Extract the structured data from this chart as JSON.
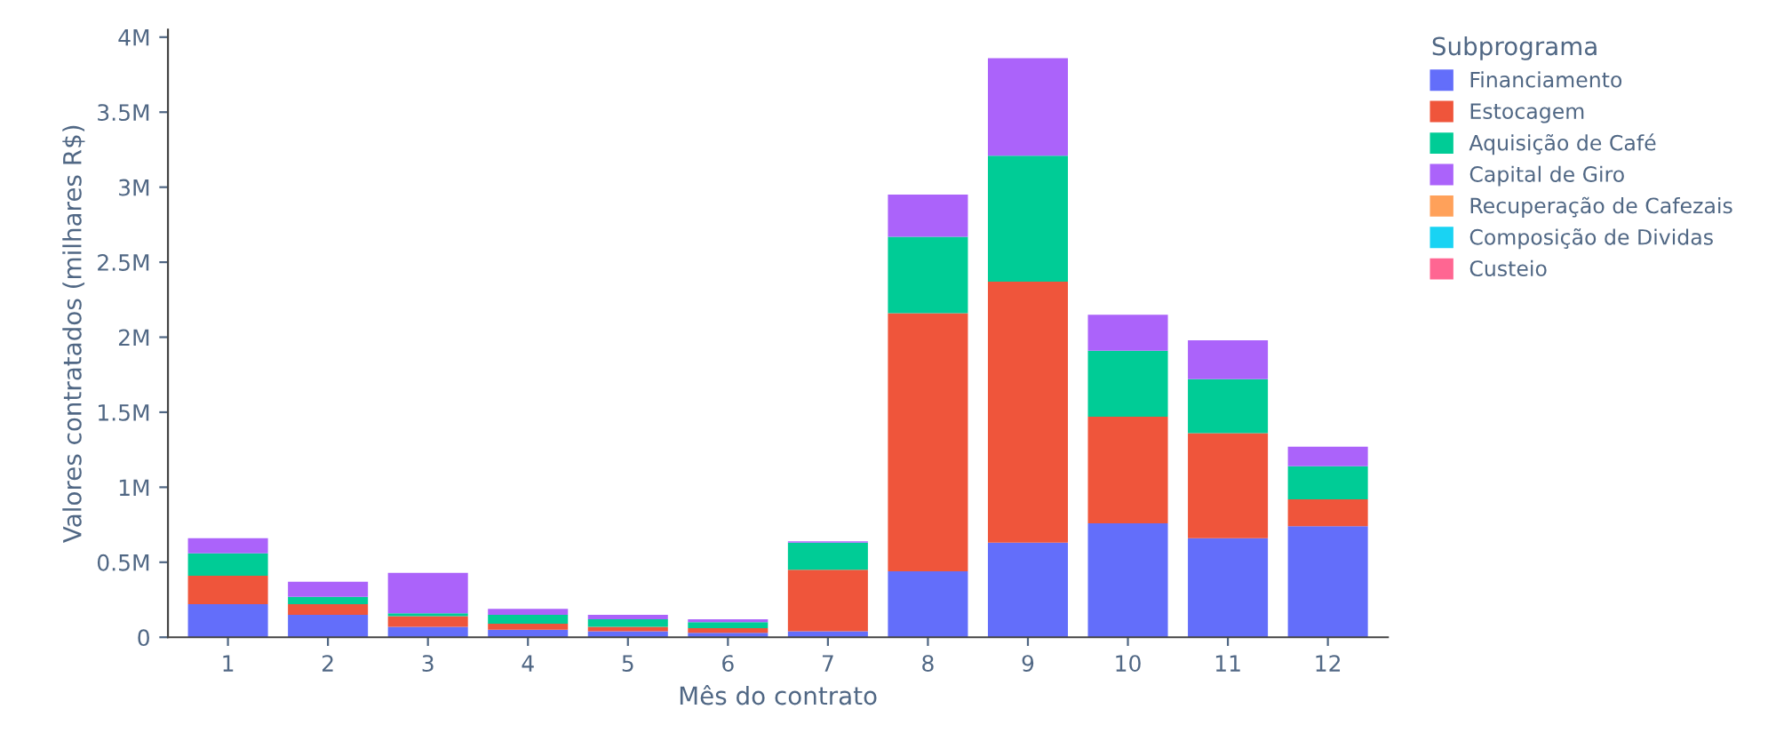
{
  "chart_data": {
    "type": "bar",
    "stacked": true,
    "xlabel": "Mês do contrato",
    "ylabel": "Valores contratados (milhares R$)",
    "legend_title": "Subprograma",
    "legend": "right",
    "grid": false,
    "categories": [
      "1",
      "2",
      "3",
      "4",
      "5",
      "6",
      "7",
      "8",
      "9",
      "10",
      "11",
      "12"
    ],
    "ylim": [
      0,
      4050000
    ],
    "yticks": [
      0,
      {
        "value": 500000,
        "label": "0.5M"
      },
      {
        "value": 1000000,
        "label": "1M"
      },
      {
        "value": 1500000,
        "label": "1.5M"
      },
      {
        "value": 2000000,
        "label": "2M"
      },
      {
        "value": 2500000,
        "label": "2.5M"
      },
      {
        "value": 3000000,
        "label": "3M"
      },
      {
        "value": 3500000,
        "label": "3.5M"
      },
      {
        "value": 4000000,
        "label": "4M"
      }
    ],
    "series": [
      {
        "name": "Financiamento",
        "color": "#636efa",
        "values": [
          220000,
          150000,
          70000,
          50000,
          40000,
          30000,
          40000,
          440000,
          630000,
          760000,
          660000,
          740000
        ]
      },
      {
        "name": "Estocagem",
        "color": "#ef553b",
        "values": [
          190000,
          70000,
          70000,
          40000,
          30000,
          30000,
          410000,
          1720000,
          1740000,
          710000,
          700000,
          180000
        ]
      },
      {
        "name": "Aquisição de Café",
        "color": "#00cc96",
        "values": [
          150000,
          50000,
          20000,
          60000,
          50000,
          40000,
          180000,
          510000,
          840000,
          440000,
          360000,
          220000
        ]
      },
      {
        "name": "Capital de Giro",
        "color": "#ab63fa",
        "values": [
          100000,
          100000,
          270000,
          40000,
          30000,
          20000,
          10000,
          280000,
          650000,
          240000,
          260000,
          130000
        ]
      },
      {
        "name": "Recuperação de Cafezais",
        "color": "#ffa15a",
        "values": [
          null,
          null,
          null,
          null,
          null,
          null,
          null,
          null,
          null,
          null,
          null,
          null
        ]
      },
      {
        "name": "Composição de Dividas",
        "color": "#19d3f3",
        "values": [
          null,
          null,
          null,
          null,
          null,
          null,
          null,
          null,
          null,
          null,
          null,
          null
        ]
      },
      {
        "name": "Custeio",
        "color": "#ff6692",
        "values": [
          null,
          null,
          null,
          null,
          null,
          null,
          null,
          null,
          null,
          null,
          null,
          null
        ]
      }
    ]
  }
}
